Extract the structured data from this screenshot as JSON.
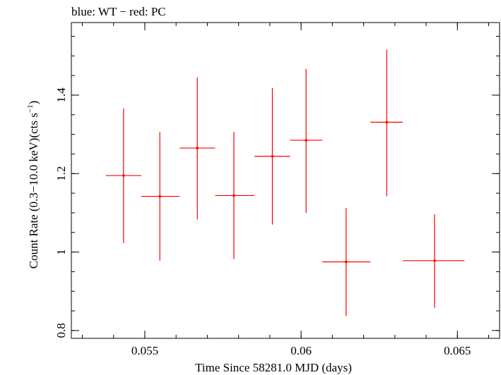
{
  "chart_data": {
    "type": "scatter",
    "title": "blue: WT − red: PC",
    "xlabel": "Time Since 58281.0 MJD (days)",
    "ylabel": "Count Rate (0.3−10.0 keV)(cts s",
    "ylabel_sup": "−1",
    "ylabel_end": ")",
    "xlim": [
      0.05265,
      0.06635
    ],
    "ylim": [
      0.78,
      1.585
    ],
    "xticks": [
      {
        "value": 0.055,
        "label": "0.055"
      },
      {
        "value": 0.06,
        "label": "0.06"
      },
      {
        "value": 0.065,
        "label": "0.065"
      }
    ],
    "yticks": [
      {
        "value": 0.8,
        "label": "0.8"
      },
      {
        "value": 1.0,
        "label": "1"
      },
      {
        "value": 1.2,
        "label": "1.2"
      },
      {
        "value": 1.4,
        "label": "1.4"
      }
    ],
    "x_minor_step": 0.001,
    "y_minor_step": 0.05,
    "grid": false,
    "series": [
      {
        "color": "#ff0000",
        "points": [
          {
            "x": 0.05432,
            "y": 1.195,
            "xlo": 0.05375,
            "xhi": 0.05489,
            "ylo": 1.023,
            "yhi": 1.366
          },
          {
            "x": 0.05548,
            "y": 1.142,
            "xlo": 0.05489,
            "xhi": 0.05611,
            "ylo": 0.978,
            "yhi": 1.306
          },
          {
            "x": 0.05668,
            "y": 1.265,
            "xlo": 0.05611,
            "xhi": 0.05725,
            "ylo": 1.083,
            "yhi": 1.445
          },
          {
            "x": 0.05785,
            "y": 1.144,
            "xlo": 0.05725,
            "xhi": 0.05851,
            "ylo": 0.982,
            "yhi": 1.306
          },
          {
            "x": 0.05908,
            "y": 1.244,
            "xlo": 0.05851,
            "xhi": 0.05965,
            "ylo": 1.07,
            "yhi": 1.418
          },
          {
            "x": 0.06016,
            "y": 1.285,
            "xlo": 0.05965,
            "xhi": 0.06068,
            "ylo": 1.1,
            "yhi": 1.467
          },
          {
            "x": 0.06144,
            "y": 0.975,
            "xlo": 0.06068,
            "xhi": 0.06222,
            "ylo": 0.837,
            "yhi": 1.112
          },
          {
            "x": 0.06274,
            "y": 1.331,
            "xlo": 0.06222,
            "xhi": 0.06325,
            "ylo": 1.142,
            "yhi": 1.516
          },
          {
            "x": 0.06427,
            "y": 0.978,
            "xlo": 0.06325,
            "xhi": 0.06523,
            "ylo": 0.858,
            "yhi": 1.096
          }
        ]
      }
    ]
  }
}
